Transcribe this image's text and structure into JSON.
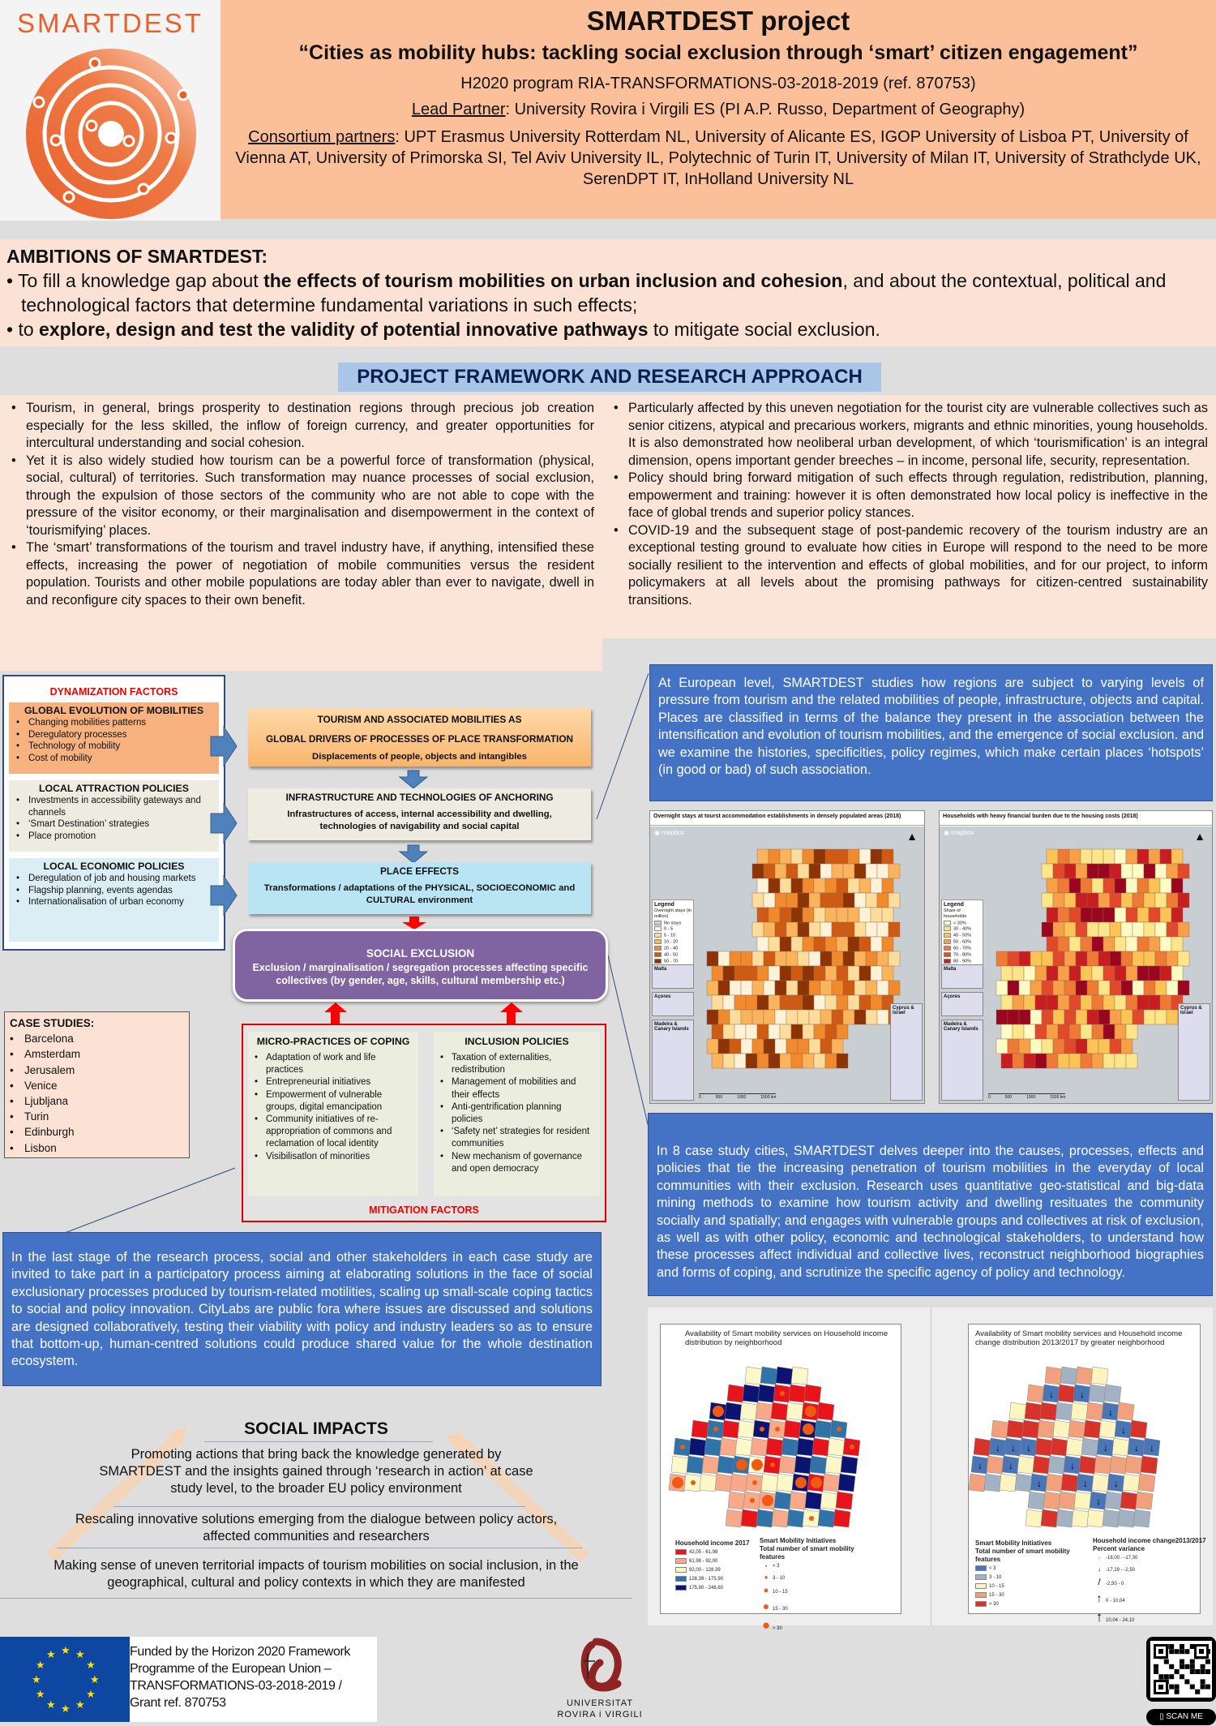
{
  "logo": {
    "text": "SMARTDEST"
  },
  "header": {
    "title": "SMARTDEST project",
    "subtitle": "“Cities as mobility hubs: tackling social exclusion through ‘smart’ citizen engagement”",
    "program": "H2020 program RIA-TRANSFORMATIONS-03-2018-2019 (ref. 870753)",
    "lead_label": "Lead Partner",
    "lead_value": ": University Rovira i Virgili ES (PI A.P. Russo, Department of Geography)",
    "consortium_label": "Consortium partners",
    "consortium_value": ": UPT Erasmus University Rotterdam NL, University of Alicante ES, IGOP University of Lisboa PT, University of Vienna AT, University of Primorska SI, Tel Aviv University IL, Polytechnic of Turin IT, University of Milan IT, University of Strathclyde UK, SerenDPT IT, InHolland University NL"
  },
  "ambitions": {
    "title": "AMBITIONS OF SMARTDEST:",
    "items": [
      {
        "pre": "To fill a knowledge gap about ",
        "bold": "the effects of tourism mobilities on urban inclusion and cohesion",
        "post": ", and about the contextual, political and technological factors that determine fundamental variations in such effects;"
      },
      {
        "pre": "to ",
        "bold": "explore, design and test the validity of potential innovative pathways",
        "post": " to mitigate social exclusion."
      }
    ]
  },
  "framework": {
    "title": "PROJECT FRAMEWORK AND RESEARCH APPROACH",
    "left": [
      "Tourism, in general, brings prosperity to destination regions through precious job creation especially for the less skilled, the inflow of foreign currency, and greater opportunities for intercultural understanding and social cohesion.",
      "Yet it is also widely studied how tourism can be a powerful force of transformation (physical, social, cultural) of territories. Such transformation may nuance processes of social exclusion, through the expulsion of those sectors of the community who are not able to cope with the pressure of the visitor economy, or their marginalisation and disempowerment in the context of ‘tourismifying’ places.",
      "The ‘smart’ transformations of the tourism and travel industry have, if anything, intensified these effects, increasing the power of negotiation of mobile communities versus the resident population. Tourists and other mobile populations are today abler than ever to navigate, dwell in and reconfigure city spaces to their own benefit."
    ],
    "right": [
      "Particularly affected by this uneven negotiation for the tourist city are vulnerable collectives such as senior citizens, atypical and precarious workers, migrants and ethnic minorities, young households. It is also demonstrated how neoliberal urban development, of which ‘tourismification’ is an integral dimension, opens important gender breeches – in income, personal life, security, representation.",
      "Policy should bring forward mitigation of such effects through regulation, redistribution, planning, empowerment and training: however it is often demonstrated how local policy is ineffective in the face of global trends and superior policy stances.",
      "COVID-19 and the subsequent stage of post-pandemic recovery of the tourism industry are an exceptional testing ground to evaluate how cities in Europe will respond to the need to be more socially resilient to the intervention and effects of global mobilities, and for our project, to inform policymakers at all levels about the promising pathways for citizen-centred sustainability transitions."
    ]
  },
  "diagram": {
    "dynamization_title": "DYNAMIZATION FACTORS",
    "factors": [
      {
        "title": "GLOBAL EVOLUTION OF MOBILITIES",
        "color": "#f8b27f",
        "items": [
          "Changing mobilities patterns",
          "Deregulatory processes",
          "Technology of mobility",
          "Cost of mobility"
        ]
      },
      {
        "title": "LOCAL ATTRACTION POLICIES",
        "color": "#eeebe0",
        "items": [
          "Investments in accessibility gateways and channels",
          "‘Smart Destination’ strategies",
          "Place promotion"
        ]
      },
      {
        "title": "LOCAL ECONOMIC POLICIES",
        "color": "#dbeef5",
        "items": [
          "Deregulation of job and housing markets",
          "Flagship planning, events agendas",
          "Internationalisation of urban economy"
        ]
      }
    ],
    "drivers": {
      "title1": "TOURISM AND ASSOCIATED MOBILITIES AS",
      "title2": "GLOBAL DRIVERS OF PROCESSES OF PLACE TRANSFORMATION",
      "sub": "Displacements of people, objects and intangibles"
    },
    "anchoring": {
      "title": "INFRASTRUCTURE AND TECHNOLOGIES OF ANCHORING",
      "sub": "Infrastructures of access, internal accessibility and dwelling, technologies of navigability and social capital"
    },
    "place_effects": {
      "title": "PLACE EFFECTS",
      "sub": "Transformations / adaptations of the PHYSICAL, SOCIOECONOMIC and CULTURAL environment"
    },
    "social_exclusion": {
      "title": "SOCIAL EXCLUSION",
      "sub": "Exclusion / marginalisation / segregation processes affecting specific collectives (by gender, age, skills, cultural membership etc.)"
    },
    "micro": {
      "title": "MICRO-PRACTICES OF COPING",
      "items": [
        "Adaptation of work and life practices",
        "Entrepreneurial initiatives",
        "Empowerment of vulnerable groups, digital emancipation",
        "Community initiatives of re-appropriation of commons and reclamation of local identity",
        "Visibilisatlon of minorities"
      ]
    },
    "inclusion": {
      "title": "INCLUSION POLICIES",
      "items": [
        "Taxation of externalities, redistribution",
        "Management of mobilities and their effects",
        "Anti-gentrification planning policies",
        "‘Safety net’ strategies for resident communities",
        "New mechanism of governance and open democracy"
      ]
    },
    "mitigation_title": "MITIGATION FACTORS"
  },
  "case_studies": {
    "title": "CASE STUDIES:",
    "items": [
      "Barcelona",
      "Amsterdam",
      "Jerusalem",
      "Venice",
      "Ljubljana",
      "Turin",
      "Edinburgh",
      "Lisbon"
    ]
  },
  "european_text": "At European level, SMARTDEST studies how regions are subject to varying levels of pressure from tourism and the related mobilities of people, infrastructure, objects and capital. Places are classified in terms of the balance they present in the association between the intensification and evolution of tourism mobilities, and the emergence of social exclusion. and we examine the histories, specificities, policy regimes, which make certain places ‘hotspots’ (in good or bad) of such association.",
  "maps_europe": [
    {
      "title": "Overnight stays at tourst accommodation establishments in densely populated areas (2018)",
      "mapbox": "mapbox",
      "legend_title": "Legend",
      "legend_sub": "Overnight stays (in million)",
      "legend": [
        {
          "label": "No stays",
          "color": "#d0d0d0"
        },
        {
          "label": "0 - 5",
          "color": "#fef3d8"
        },
        {
          "label": "5 - 10",
          "color": "#fddc9c"
        },
        {
          "label": "10 - 20",
          "color": "#fbb35c"
        },
        {
          "label": "20 - 40",
          "color": "#f08a2c"
        },
        {
          "label": "40 - 50",
          "color": "#cf5b12"
        },
        {
          "label": "50 - 70",
          "color": "#8e3306"
        },
        {
          "label": "No data available",
          "color": "#ffffff"
        }
      ],
      "insets": [
        "Malta",
        "Açores",
        "Madeira & Canary Islands",
        "Cyprus & Israel"
      ],
      "scale": [
        "0",
        "500",
        "1000",
        "1500 km"
      ]
    },
    {
      "title": "Households with heavy financial burden due to the housing costs (2018)",
      "mapbox": "mapbox",
      "legend_title": "Legend",
      "legend_sub": "Share of households",
      "legend": [
        {
          "label": "< 30%",
          "color": "#fefbc4"
        },
        {
          "label": "30 - 40%",
          "color": "#fde58a"
        },
        {
          "label": "40 - 50%",
          "color": "#fbc454"
        },
        {
          "label": "50 - 60%",
          "color": "#f7a048"
        },
        {
          "label": "60 - 70%",
          "color": "#ef7a36"
        },
        {
          "label": "70 - 80%",
          "color": "#e2482a"
        },
        {
          "label": "80 - 90%",
          "color": "#c81e22"
        },
        {
          "label": "> 90%",
          "color": "#9a0620"
        },
        {
          "label": "No data available",
          "color": "#ffffff"
        }
      ],
      "insets": [
        "Malta",
        "Açores",
        "Madeira & Canary Islands",
        "Cyprus & Israel"
      ],
      "scale": [
        "0",
        "500",
        "1000",
        "1500 km"
      ]
    }
  ],
  "case_text": "In 8 case study cities, SMARTDEST delves deeper into the causes, processes, effects and policies that tie the increasing penetration of tourism mobilities in the everyday of local communities with their exclusion. Research uses quantitative geo-statistical and big-data mining methods to examine how tourism activity and dwelling resituates the community socially and spatially; and engages with vulnerable groups and collectives at risk of exclusion, as well as with other policy, economic and technological stakeholders, to understand how these processes affect individual and collective lives, reconstruct neighborhood biographies and forms of coping, and scrutinize the specific agency of policy and technology.",
  "citylabs_text": "In the last stage of the research process, social and other stakeholders in each case study are invited to take part in a participatory process aiming at elaborating solutions in the face of social exclusionary processes produced by tourism-related motilities, scaling up small-scale coping tactics to social and policy innovation. CityLabs are public fora where issues are discussed and solutions are designed collaboratively, testing their viability with policy and industry leaders so as to ensure that bottom-up, human-centred solutions could produce shared value for the whole destination ecosystem.",
  "maps_city": [
    {
      "title": "Availability of Smart mobility services on Household income distribution by neighborhood",
      "legend1_title": "Household income 2017",
      "legend1": [
        {
          "label": "42,05 - 61,98",
          "color": "#e8141c"
        },
        {
          "label": "61,98 - 92,00",
          "color": "#f7a98a"
        },
        {
          "label": "92,00 - 128,39",
          "color": "#fdf8c8"
        },
        {
          "label": "128,39 - 175,90",
          "color": "#2f73a8"
        },
        {
          "label": "175,90 - 246,60",
          "color": "#0b1470"
        }
      ],
      "legend2_title1": "Smart Mobility Initiatives",
      "legend2_title2": "Total number of smart mobility features",
      "legend2": [
        "< 3",
        "3 - 10",
        "10 - 15",
        "15 - 30",
        "> 30"
      ]
    },
    {
      "title": "Availability of Smart mobility services and Household income change distribution 2013/2017 by greater neighborhood",
      "legend1_title": "Smart Mobility Initiatives",
      "legend1_sub": "Total number of smart mobility features",
      "legend1": [
        {
          "label": "< 3",
          "color": "#4a76b8"
        },
        {
          "label": "3 - 10",
          "color": "#a3b2c2"
        },
        {
          "label": "10 - 15",
          "color": "#fdf5c0"
        },
        {
          "label": "15 - 30",
          "color": "#f1a27c"
        },
        {
          "label": "> 30",
          "color": "#d8332a"
        }
      ],
      "legend2_title1": "Household income change2013/2017",
      "legend2_title2": "Percent variance",
      "legend2": [
        "-18,00 - -17,30",
        "-17,29 - -2,50",
        "-2,50 - 0",
        "0 - 10,04",
        "10,04 - 24,10"
      ]
    }
  ],
  "impacts": {
    "title": "SOCIAL IMPACTS",
    "items": [
      "Promoting actions that bring back the knowledge generated by SMARTDEST and the insights gained through ‘research in action’ at case study level, to the broader EU policy environment",
      "Rescaling innovative solutions emerging from the dialogue between policy actors, affected communities and researchers",
      "Making sense of uneven territorial impacts of tourism mobilities on social inclusion, in the geographical, cultural and policy contexts in which they are manifested"
    ]
  },
  "footer": {
    "funding": [
      "Funded by the Horizon 2020 Framework",
      "Programme of the European Union –",
      "TRANSFORMATIONS-03-2018-2019 /",
      "Grant ref. 870753"
    ],
    "university": [
      "UNIVERSITAT",
      "ROVIRA i VIRGILI"
    ],
    "scan_me": "SCAN ME"
  },
  "colors": {
    "orange": "#e8602c",
    "header_bg": "#fbc09a",
    "peach": "#fbe2d4",
    "blue_box": "#4472c4",
    "purple": "#8064a2",
    "red": "#e00000"
  }
}
